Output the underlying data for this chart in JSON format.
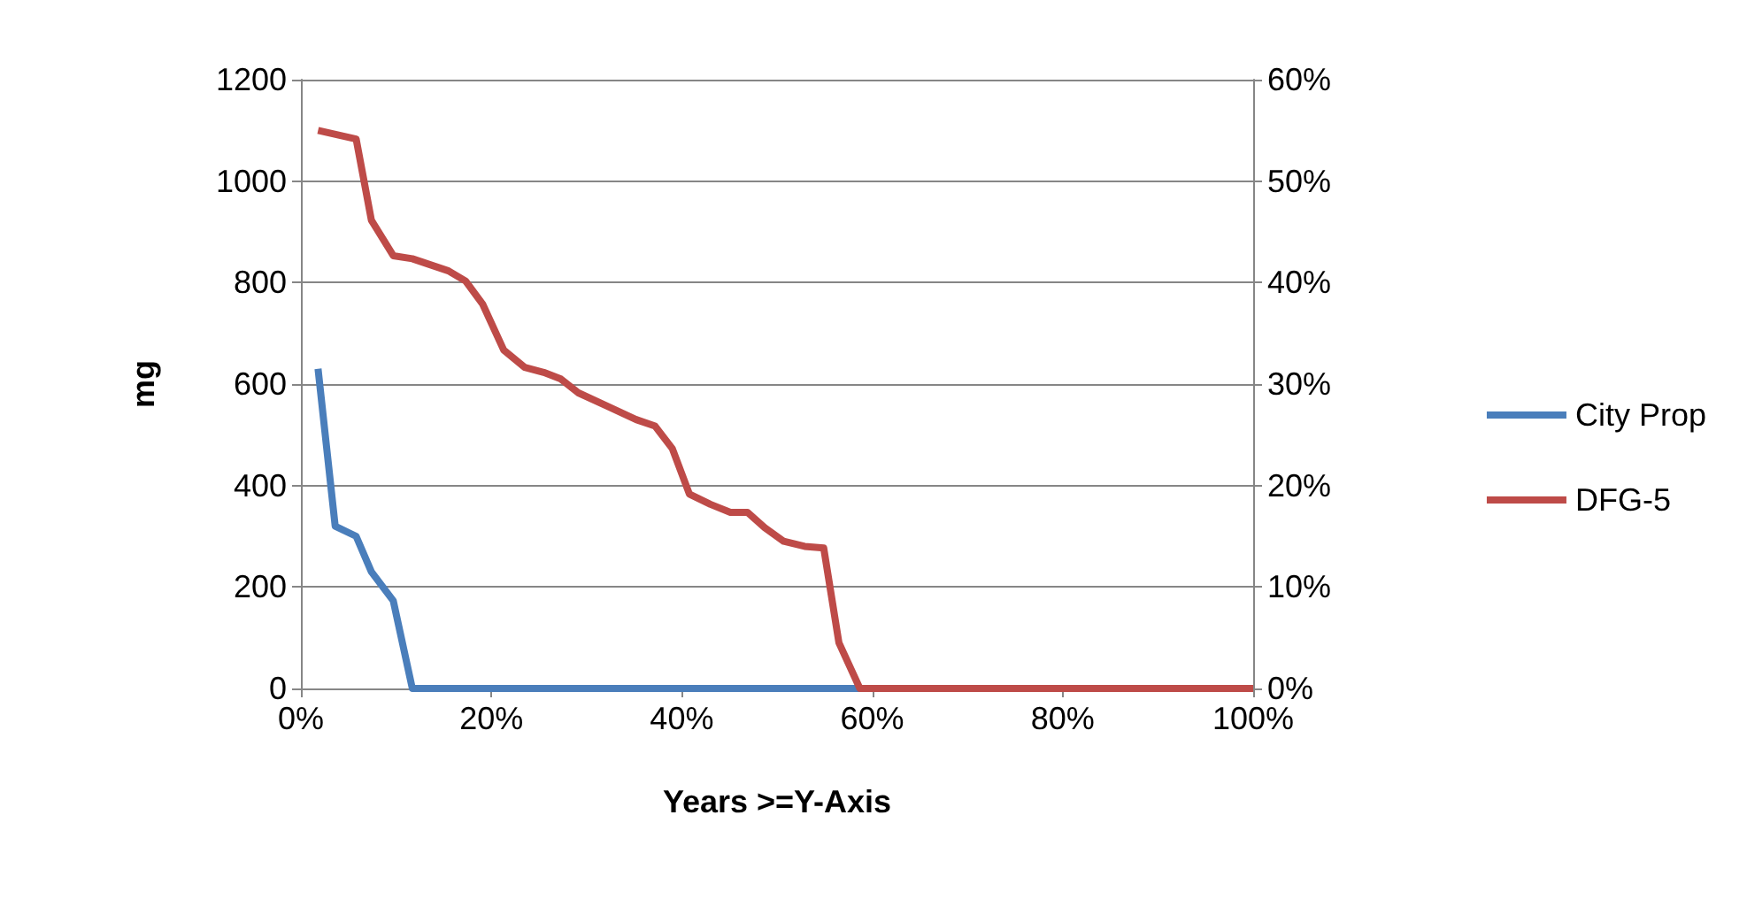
{
  "chart_data": {
    "type": "line",
    "xlabel": "Years >=Y-Axis",
    "ylabel": "mg",
    "xlim": [
      0,
      100
    ],
    "xticks": [
      {
        "value": 0,
        "label": "0%"
      },
      {
        "value": 20,
        "label": "20%"
      },
      {
        "value": 40,
        "label": "40%"
      },
      {
        "value": 60,
        "label": "60%"
      },
      {
        "value": 80,
        "label": "80%"
      },
      {
        "value": 100,
        "label": "100%"
      }
    ],
    "ylim": [
      0,
      1200
    ],
    "yticks": [
      0,
      200,
      400,
      600,
      800,
      1000,
      1200
    ],
    "y2lim": [
      0,
      60
    ],
    "y2ticks": [
      {
        "value": 0,
        "label": "0%"
      },
      {
        "value": 10,
        "label": "10%"
      },
      {
        "value": 20,
        "label": "20%"
      },
      {
        "value": 30,
        "label": "30%"
      },
      {
        "value": 40,
        "label": "40%"
      },
      {
        "value": 50,
        "label": "50%"
      },
      {
        "value": 60,
        "label": "60%"
      }
    ],
    "grid": "y",
    "legend": "right",
    "marker": "none",
    "line_style": "solid",
    "series": [
      {
        "name": "City Prop",
        "color": "#4a7ebb",
        "x": [
          1.8,
          3.6,
          5.8,
          7.4,
          9.7,
          11.7,
          100
        ],
        "values": [
          630,
          320,
          300,
          230,
          173,
          0,
          0
        ]
      },
      {
        "name": "DFG-5",
        "color": "#be4b48",
        "x": [
          1.8,
          5.8,
          7.4,
          9.7,
          11.7,
          15.5,
          17.3,
          19.1,
          21.3,
          23.5,
          25.5,
          27.3,
          29.1,
          32.1,
          35.2,
          37.2,
          39.0,
          40.8,
          43.0,
          45.1,
          46.9,
          48.7,
          50.7,
          52.9,
          54.9,
          56.5,
          58.7,
          100
        ],
        "values": [
          1100,
          1083,
          923,
          853,
          847,
          823,
          803,
          757,
          667,
          633,
          623,
          610,
          583,
          557,
          530,
          517,
          473,
          383,
          363,
          347,
          347,
          317,
          290,
          280,
          277,
          90,
          0,
          0
        ]
      }
    ]
  }
}
